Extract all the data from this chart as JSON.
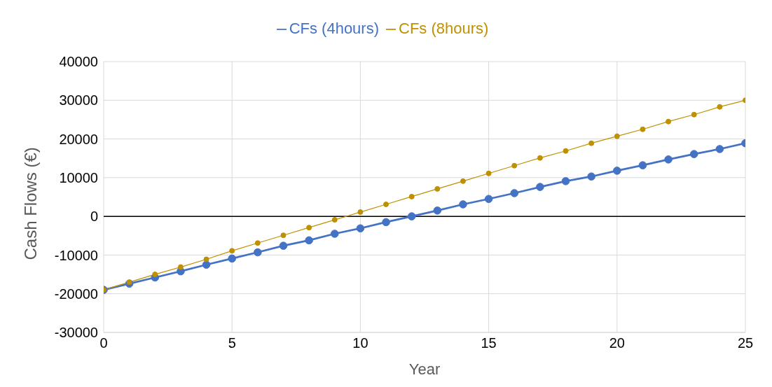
{
  "chart_data": {
    "type": "line",
    "xlabel": "Year",
    "ylabel": "Cash Flows (€)",
    "x": [
      0,
      1,
      2,
      3,
      4,
      5,
      6,
      7,
      8,
      9,
      10,
      11,
      12,
      13,
      14,
      15,
      16,
      17,
      18,
      19,
      20,
      21,
      22,
      23,
      24,
      25
    ],
    "series": [
      {
        "name": "CFs (4hours)",
        "color": "#4472c4",
        "values": [
          -19000,
          -17400,
          -15800,
          -14200,
          -12500,
          -10900,
          -9300,
          -7600,
          -6200,
          -4500,
          -3100,
          -1500,
          0,
          1500,
          3100,
          4500,
          6000,
          7600,
          9100,
          10300,
          11800,
          13200,
          14700,
          16100,
          17400,
          18900
        ]
      },
      {
        "name": "CFs (8hours)",
        "color": "#bf9000",
        "values": [
          -19000,
          -17000,
          -15000,
          -13100,
          -11100,
          -8900,
          -6900,
          -4900,
          -2900,
          -900,
          1100,
          3100,
          5100,
          7100,
          9100,
          11100,
          13100,
          15100,
          16900,
          18900,
          20700,
          22500,
          24500,
          26300,
          28300,
          30000
        ]
      }
    ],
    "xlim": [
      0,
      25
    ],
    "xticks": [
      0,
      5,
      10,
      15,
      20,
      25
    ],
    "ylim": [
      -30000,
      40000
    ],
    "yticks": [
      -30000,
      -20000,
      -10000,
      0,
      10000,
      20000,
      30000,
      40000
    ],
    "ref_lines": [
      {
        "axis": "y",
        "value": 0,
        "color": "#000000"
      }
    ],
    "grid": true,
    "legend": "top",
    "marker": "circle",
    "line_style": "solid"
  }
}
